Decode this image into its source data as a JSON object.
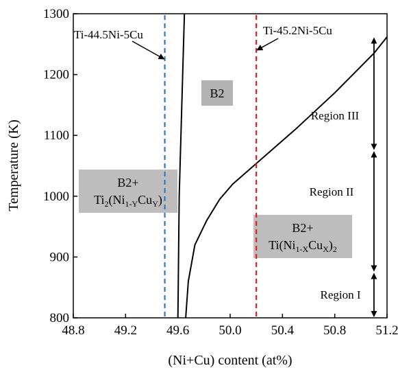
{
  "chart_data": {
    "type": "line",
    "xlabel": "(Ni+Cu) content (at%)",
    "ylabel": "Temperature (K)",
    "xlim": [
      48.8,
      51.2
    ],
    "ylim": [
      800,
      1300
    ],
    "xticks": [
      48.8,
      49.2,
      49.6,
      50.0,
      50.4,
      50.8,
      51.2
    ],
    "xtick_labels": [
      "48.8",
      "49.2",
      "49.6",
      "50.0",
      "50.4",
      "50.8",
      "51.2"
    ],
    "yticks": [
      800,
      900,
      1000,
      1100,
      1200,
      1300
    ],
    "ytick_labels": [
      "800",
      "900",
      "1000",
      "1100",
      "1200",
      "1300"
    ],
    "grid": false,
    "boundaries": [
      {
        "x": [
          49.6,
          49.61,
          49.63,
          49.65
        ],
        "y": [
          800,
          1000,
          1150,
          1300
        ]
      },
      {
        "x": [
          49.66,
          49.68,
          49.73,
          49.82,
          49.92,
          50.02,
          50.18,
          50.5,
          50.8,
          51.1,
          51.2
        ],
        "y": [
          800,
          860,
          920,
          960,
          995,
          1020,
          1050,
          1110,
          1170,
          1235,
          1262
        ]
      }
    ],
    "vlines": [
      {
        "x": 49.5,
        "color": "#3a75b6",
        "style": "dashed",
        "label": "Ti-44.5Ni-5Cu"
      },
      {
        "x": 50.2,
        "color": "#e02020",
        "style": "dashed",
        "label": "Ti-45.2Ni-5Cu"
      }
    ],
    "phase_labels": [
      {
        "text": "B2",
        "x": 49.82,
        "y": 1170
      },
      {
        "text": "B2+",
        "text2": "Ti",
        "sub1": "2",
        "text3": "(Ni",
        "sub2": "1-Y",
        "text4": "Cu",
        "sub3": "Y",
        "text5": ")",
        "x": 49.17,
        "y": 1010
      },
      {
        "text": "B2+",
        "text2": "Ti(Ni",
        "sub1": "1-X",
        "text3": "Cu",
        "sub2": "X",
        "text4": ")",
        "sub3": "2",
        "x": 50.6,
        "y": 920
      }
    ],
    "regions": [
      {
        "label": "Region I",
        "y_range": [
          800,
          875
        ]
      },
      {
        "label": "Region II",
        "y_range": [
          875,
          1075
        ]
      },
      {
        "label": "Region III",
        "y_range": [
          1075,
          1262
        ]
      }
    ],
    "region_arrow_x": 51.1
  }
}
